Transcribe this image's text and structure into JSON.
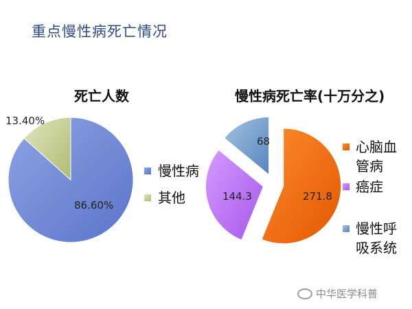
{
  "title": "重点慢性病死亡情况",
  "watermark": "中华医学科普",
  "colors": {
    "blue": "#6d86d6",
    "olive": "#c6d196",
    "orange": "#f26b0f",
    "purple": "#b86ff0",
    "steel": "#6b98c8"
  },
  "chart_data": [
    {
      "type": "pie",
      "title": "死亡人数",
      "slices": [
        {
          "name": "慢性病",
          "value": 86.6,
          "label": "86.60%",
          "color": "#6d86d6"
        },
        {
          "name": "其他",
          "value": 13.4,
          "label": "13.40%",
          "color": "#c6d196"
        }
      ],
      "legend": [
        "慢性病",
        "其他"
      ],
      "legend_placement": "right"
    },
    {
      "type": "pie",
      "title": "慢性病死亡率(十万分之)",
      "exploded": true,
      "slices": [
        {
          "name": "心脑血管病",
          "value": 271.8,
          "label": "271.8",
          "color": "#f26b0f"
        },
        {
          "name": "癌症",
          "value": 144.3,
          "label": "144.3",
          "color": "#b86ff0"
        },
        {
          "name": "慢性呼吸系统",
          "value": 68,
          "label": "68",
          "color": "#6b98c8"
        }
      ],
      "legend": [
        "心脑血管病",
        "癌症",
        "慢性呼吸系统"
      ],
      "legend_placement": "right"
    }
  ]
}
